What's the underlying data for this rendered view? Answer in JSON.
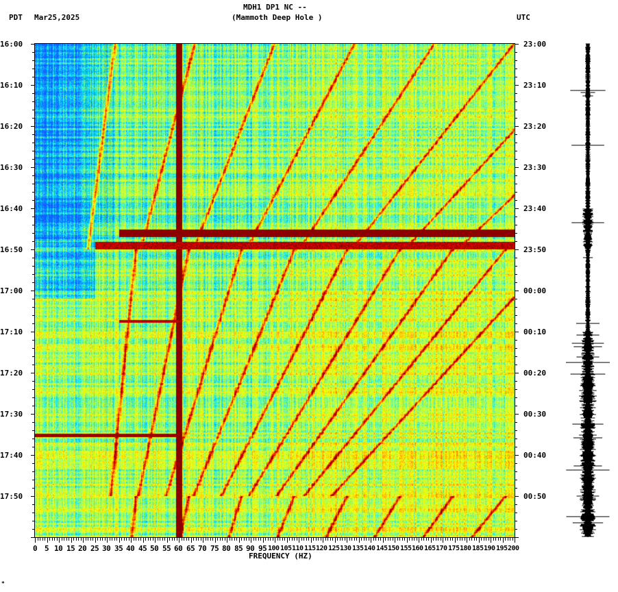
{
  "header": {
    "title": "MDH1 DP1 NC --",
    "subtitle": "(Mammoth Deep Hole )",
    "left_tz": "PDT",
    "date": "Mar25,2025",
    "right_tz": "UTC"
  },
  "footer_mark": "*",
  "chart_data": {
    "type": "heatmap",
    "title": "MDH1 DP1 NC -- (Mammoth Deep Hole )",
    "xlabel": "FREQUENCY (HZ)",
    "xlim": [
      0,
      200
    ],
    "x_ticks": [
      "0",
      "5",
      "10",
      "15",
      "20",
      "25",
      "30",
      "35",
      "40",
      "45",
      "50",
      "55",
      "60",
      "65",
      "70",
      "75",
      "80",
      "85",
      "90",
      "95",
      "100",
      "105",
      "110",
      "115",
      "120",
      "125",
      "130",
      "135",
      "140",
      "145",
      "150",
      "155",
      "160",
      "165",
      "170",
      "175",
      "180",
      "185",
      "190",
      "195",
      "200"
    ],
    "y_left_label": "PDT",
    "y_left_ticks": [
      "16:00",
      "16:10",
      "16:20",
      "16:30",
      "16:40",
      "16:50",
      "17:00",
      "17:10",
      "17:20",
      "17:30",
      "17:40",
      "17:50"
    ],
    "y_right_label": "UTC",
    "y_right_ticks": [
      "23:00",
      "23:10",
      "23:20",
      "23:30",
      "23:40",
      "23:50",
      "00:00",
      "00:10",
      "00:20",
      "00:30",
      "00:40",
      "00:50"
    ],
    "time_range_minutes": [
      0,
      120
    ],
    "colormap": [
      "#1060ff",
      "#00e0ff",
      "#a0ff60",
      "#ffff00",
      "#ff8000",
      "#e00000",
      "#800000"
    ],
    "features": [
      {
        "type": "vertical_line",
        "freq_hz": 60
      },
      {
        "type": "horizontal_band",
        "time_min": 46,
        "freq_range": [
          35,
          200
        ]
      },
      {
        "type": "horizontal_band",
        "time_min": 49,
        "freq_range": [
          25,
          200
        ]
      },
      {
        "type": "horizontal_band",
        "time_min": 95,
        "freq_range": [
          0,
          60
        ]
      }
    ]
  }
}
